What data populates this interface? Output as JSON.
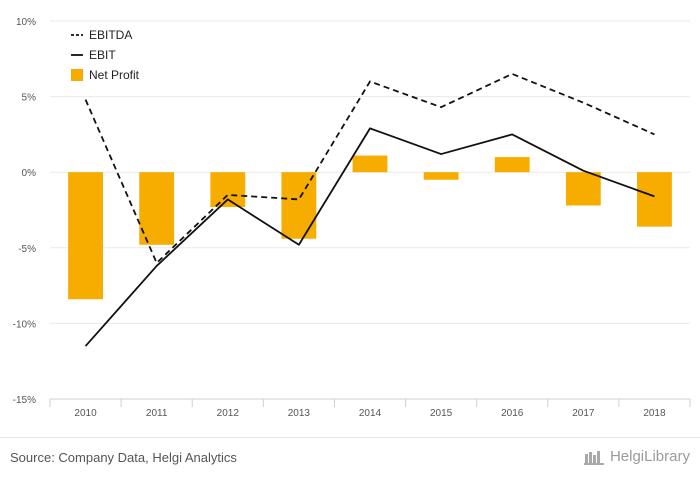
{
  "chart_data": {
    "type": "bar",
    "categories": [
      "2010",
      "2011",
      "2012",
      "2013",
      "2014",
      "2015",
      "2016",
      "2017",
      "2018"
    ],
    "ylim": [
      -15,
      10
    ],
    "yticks": [
      10,
      5,
      0,
      -5,
      -10,
      -15
    ],
    "ytick_labels": [
      "10%",
      "5%",
      "0%",
      "-5%",
      "-10%",
      "-15%"
    ],
    "series": [
      {
        "name": "EBITDA",
        "kind": "line",
        "dash": true,
        "color": "#111111",
        "values": [
          4.8,
          -6.0,
          -1.5,
          -1.8,
          6.0,
          4.3,
          6.5,
          4.6,
          2.5
        ]
      },
      {
        "name": "EBIT",
        "kind": "line",
        "dash": false,
        "color": "#111111",
        "values": [
          -11.5,
          -6.2,
          -1.8,
          -4.8,
          2.9,
          1.2,
          2.5,
          0.1,
          -1.6
        ]
      },
      {
        "name": "Net Profit",
        "kind": "bar",
        "color": "#f7ad00",
        "values": [
          -8.4,
          -4.8,
          -2.3,
          -4.4,
          1.1,
          -0.5,
          1.0,
          -2.2,
          -3.6
        ]
      }
    ],
    "title": "",
    "xlabel": "",
    "ylabel": "",
    "grid": true,
    "legend": "top-left"
  },
  "footer": {
    "source": "Source: Company Data, Helgi Analytics",
    "brand": "HelgiLibrary"
  }
}
